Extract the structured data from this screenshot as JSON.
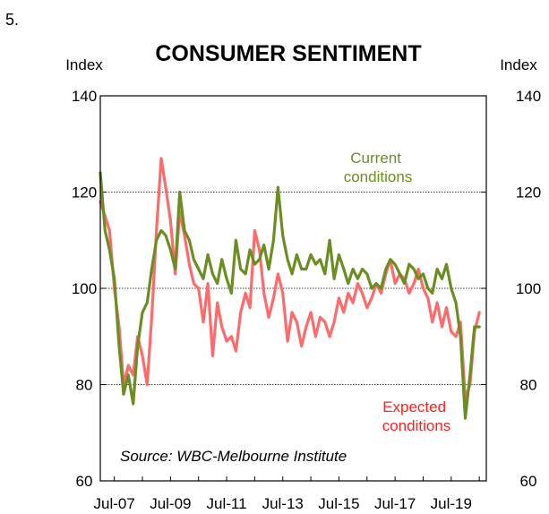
{
  "figure_number": "5.",
  "chart_data": {
    "type": "line",
    "title": "CONSUMER SENTIMENT",
    "ylabel_left": "Index",
    "ylabel_right": "Index",
    "ylim": [
      60,
      140
    ],
    "yticks": [
      60,
      80,
      100,
      120,
      140
    ],
    "gridlines_y": [
      80,
      100,
      120
    ],
    "xlim": [
      2007.0,
      2020.75
    ],
    "xtick_labels": [
      "Jul-07",
      "Jul-09",
      "Jul-11",
      "Jul-13",
      "Jul-15",
      "Jul-17",
      "Jul-19"
    ],
    "xtick_values": [
      2007.5,
      2009.5,
      2011.5,
      2013.5,
      2015.5,
      2017.5,
      2019.5
    ],
    "source": "Source: WBC-Melbourne Institute",
    "series": [
      {
        "name": "Current conditions",
        "label_lines": [
          "Current",
          "conditions"
        ],
        "color": "#6b8e23",
        "x": [
          2007.0,
          2007.17,
          2007.33,
          2007.5,
          2007.67,
          2007.83,
          2008.0,
          2008.17,
          2008.33,
          2008.5,
          2008.67,
          2008.83,
          2009.0,
          2009.17,
          2009.33,
          2009.5,
          2009.67,
          2009.83,
          2010.0,
          2010.17,
          2010.33,
          2010.5,
          2010.67,
          2010.83,
          2011.0,
          2011.17,
          2011.33,
          2011.5,
          2011.67,
          2011.83,
          2012.0,
          2012.17,
          2012.33,
          2012.5,
          2012.67,
          2012.83,
          2013.0,
          2013.17,
          2013.33,
          2013.5,
          2013.67,
          2013.83,
          2014.0,
          2014.17,
          2014.33,
          2014.5,
          2014.67,
          2014.83,
          2015.0,
          2015.17,
          2015.33,
          2015.5,
          2015.67,
          2015.83,
          2016.0,
          2016.17,
          2016.33,
          2016.5,
          2016.67,
          2016.83,
          2017.0,
          2017.17,
          2017.33,
          2017.5,
          2017.67,
          2017.83,
          2018.0,
          2018.17,
          2018.33,
          2018.5,
          2018.67,
          2018.83,
          2019.0,
          2019.17,
          2019.33,
          2019.5,
          2019.67,
          2019.83,
          2020.0,
          2020.17,
          2020.33,
          2020.5
        ],
        "values": [
          124,
          112,
          108,
          102,
          88,
          78,
          82,
          76,
          88,
          95,
          97,
          104,
          110,
          112,
          111,
          108,
          104,
          120,
          112,
          110,
          106,
          104,
          102,
          107,
          103,
          101,
          106,
          102,
          99,
          110,
          104,
          103,
          108,
          105,
          106,
          109,
          104,
          110,
          121,
          111,
          106,
          103,
          107,
          104,
          104,
          107,
          105,
          106,
          103,
          110,
          102,
          107,
          104,
          101,
          104,
          102,
          104,
          103,
          100,
          101,
          100,
          104,
          106,
          105,
          103,
          101,
          105,
          104,
          102,
          103,
          100,
          99,
          104,
          102,
          105,
          100,
          97,
          90,
          73,
          82,
          92,
          92
        ]
      },
      {
        "name": "Expected conditions",
        "label_lines": [
          "Expected",
          "conditions"
        ],
        "color": "#ff6b6b",
        "x": [
          2007.0,
          2007.17,
          2007.33,
          2007.5,
          2007.67,
          2007.83,
          2008.0,
          2008.17,
          2008.33,
          2008.5,
          2008.67,
          2008.83,
          2009.0,
          2009.17,
          2009.33,
          2009.5,
          2009.67,
          2009.83,
          2010.0,
          2010.17,
          2010.33,
          2010.5,
          2010.67,
          2010.83,
          2011.0,
          2011.17,
          2011.33,
          2011.5,
          2011.67,
          2011.83,
          2012.0,
          2012.17,
          2012.33,
          2012.5,
          2012.67,
          2012.83,
          2013.0,
          2013.17,
          2013.33,
          2013.5,
          2013.67,
          2013.83,
          2014.0,
          2014.17,
          2014.33,
          2014.5,
          2014.67,
          2014.83,
          2015.0,
          2015.17,
          2015.33,
          2015.5,
          2015.67,
          2015.83,
          2016.0,
          2016.17,
          2016.33,
          2016.5,
          2016.67,
          2016.83,
          2017.0,
          2017.17,
          2017.33,
          2017.5,
          2017.67,
          2017.83,
          2018.0,
          2018.17,
          2018.33,
          2018.5,
          2018.67,
          2018.83,
          2019.0,
          2019.17,
          2019.33,
          2019.5,
          2019.67,
          2019.83,
          2020.0,
          2020.17,
          2020.33,
          2020.5
        ],
        "values": [
          118,
          115,
          112,
          100,
          92,
          80,
          84,
          82,
          90,
          86,
          80,
          94,
          112,
          127,
          121,
          114,
          103,
          116,
          111,
          105,
          101,
          100,
          93,
          101,
          86,
          97,
          92,
          89,
          90,
          87,
          95,
          99,
          96,
          112,
          108,
          99,
          94,
          98,
          103,
          99,
          89,
          95,
          93,
          88,
          92,
          95,
          90,
          94,
          93,
          90,
          93,
          98,
          95,
          99,
          97,
          101,
          99,
          96,
          98,
          101,
          99,
          103,
          106,
          101,
          103,
          102,
          99,
          101,
          104,
          100,
          98,
          93,
          97,
          92,
          96,
          91,
          90,
          93,
          77,
          80,
          91,
          95
        ]
      }
    ],
    "annotations": {
      "current_color": "#6b8e23",
      "expected_color": "#ff2020"
    }
  }
}
